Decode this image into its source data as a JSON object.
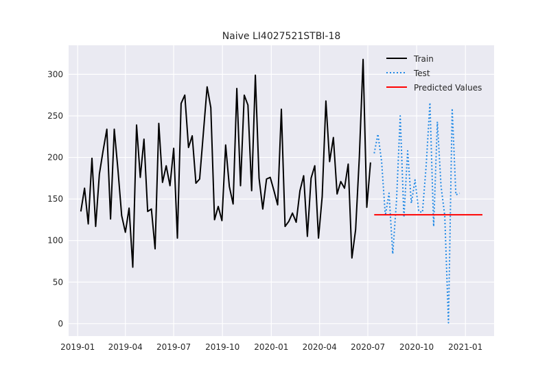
{
  "chart_data": {
    "type": "line",
    "title": "Naive LI4027521STBI-18",
    "xlabel": "",
    "ylabel": "",
    "xlim": [
      "2018-12-15",
      "2021-02-24"
    ],
    "ylim": [
      -15,
      335
    ],
    "x_ticks": [
      "2019-01",
      "2019-04",
      "2019-07",
      "2019-10",
      "2020-01",
      "2020-04",
      "2020-07",
      "2020-10",
      "2021-01"
    ],
    "y_ticks": [
      0,
      50,
      100,
      150,
      200,
      250,
      300
    ],
    "grid": true,
    "legend": {
      "placement": "top-right",
      "entries": [
        {
          "label": "Train",
          "color": "#000000",
          "style": "solid"
        },
        {
          "label": "Test",
          "color": "#1e88e5",
          "style": "dotted"
        },
        {
          "label": "Predicted Values",
          "color": "#ff0000",
          "style": "solid"
        }
      ]
    },
    "series": [
      {
        "name": "Train",
        "color": "#000000",
        "style": "solid",
        "x": [
          "2019-01-07",
          "2019-01-14",
          "2019-01-21",
          "2019-01-28",
          "2019-02-04",
          "2019-02-11",
          "2019-02-18",
          "2019-02-25",
          "2019-03-04",
          "2019-03-11",
          "2019-03-18",
          "2019-03-25",
          "2019-04-01",
          "2019-04-08",
          "2019-04-15",
          "2019-04-22",
          "2019-04-29",
          "2019-05-06",
          "2019-05-13",
          "2019-05-20",
          "2019-05-27",
          "2019-06-03",
          "2019-06-10",
          "2019-06-17",
          "2019-06-24",
          "2019-07-01",
          "2019-07-08",
          "2019-07-15",
          "2019-07-22",
          "2019-07-29",
          "2019-08-05",
          "2019-08-12",
          "2019-08-19",
          "2019-08-26",
          "2019-09-02",
          "2019-09-09",
          "2019-09-16",
          "2019-09-23",
          "2019-09-30",
          "2019-10-07",
          "2019-10-14",
          "2019-10-21",
          "2019-10-28",
          "2019-11-04",
          "2019-11-11",
          "2019-11-18",
          "2019-11-25",
          "2019-12-02",
          "2019-12-09",
          "2019-12-16",
          "2019-12-23",
          "2019-12-30",
          "2020-01-06",
          "2020-01-13",
          "2020-01-20",
          "2020-01-27",
          "2020-02-03",
          "2020-02-10",
          "2020-02-17",
          "2020-02-24",
          "2020-03-02",
          "2020-03-09",
          "2020-03-16",
          "2020-03-23",
          "2020-03-30",
          "2020-04-06",
          "2020-04-13",
          "2020-04-20",
          "2020-04-27",
          "2020-05-04",
          "2020-05-11",
          "2020-05-18",
          "2020-05-25",
          "2020-06-01",
          "2020-06-08",
          "2020-06-15",
          "2020-06-22",
          "2020-06-29",
          "2020-07-06"
        ],
        "values": [
          135,
          163,
          120,
          199,
          117,
          180,
          208,
          234,
          126,
          234,
          185,
          130,
          110,
          139,
          68,
          239,
          176,
          222,
          135,
          138,
          90,
          241,
          170,
          190,
          166,
          211,
          103,
          265,
          275,
          212,
          226,
          169,
          174,
          230,
          285,
          260,
          125,
          141,
          124,
          215,
          165,
          144,
          283,
          166,
          275,
          263,
          160,
          299,
          175,
          138,
          174,
          176,
          160,
          143,
          258,
          117,
          123,
          133,
          122,
          160,
          178,
          105,
          175,
          190,
          103,
          153,
          268,
          195,
          224,
          156,
          171,
          163,
          192,
          79,
          113,
          200,
          318,
          140,
          194
        ]
      },
      {
        "name": "Test",
        "color": "#1e88e5",
        "style": "dotted",
        "x": [
          "2020-07-13",
          "2020-07-20",
          "2020-07-27",
          "2020-08-03",
          "2020-08-10",
          "2020-08-17",
          "2020-08-24",
          "2020-08-31",
          "2020-09-07",
          "2020-09-14",
          "2020-09-21",
          "2020-09-28",
          "2020-10-05",
          "2020-10-12",
          "2020-10-19",
          "2020-10-26",
          "2020-11-02",
          "2020-11-09",
          "2020-11-16",
          "2020-11-23",
          "2020-11-30",
          "2020-12-07",
          "2020-12-14",
          "2020-12-21"
        ],
        "values": [
          205,
          228,
          195,
          130,
          157,
          84,
          148,
          250,
          128,
          208,
          145,
          173,
          135,
          134,
          190,
          266,
          117,
          243,
          165,
          130,
          1,
          259,
          155,
          157
        ]
      },
      {
        "name": "Predicted Values",
        "color": "#ff0000",
        "style": "solid",
        "x": [
          "2020-07-13",
          "2021-02-02"
        ],
        "values": [
          131,
          131
        ]
      }
    ]
  }
}
